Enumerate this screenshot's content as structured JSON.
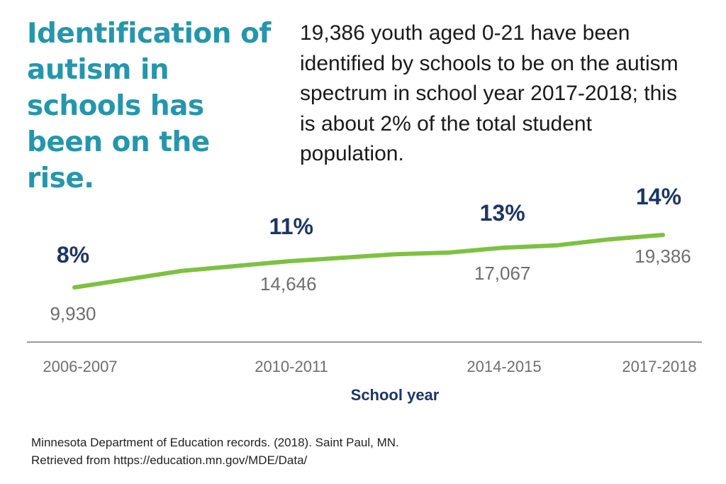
{
  "headline": "Identification of autism in schools has been on the rise.",
  "summary": "19,386 youth aged 0-21 have been identified by schools to be on the autism spectrum in school year 2017-2018; this is about 2% of the total student population.",
  "source": {
    "line1": "Minnesota Department of Education records. (2018). Saint Paul, MN.",
    "line2": "Retrieved from https://education.mn.gov/MDE/Data/"
  },
  "colors": {
    "headline": "#2596ab",
    "line": "#7dc142",
    "percent_label": "#1c3664",
    "count_label": "#6e6e6e",
    "axis": "#9b9b9b",
    "axis_title": "#1c3664",
    "tick_label": "#6e6e6e"
  },
  "chart_data": {
    "type": "line",
    "xlabel": "School year",
    "ylabel": "",
    "grid": false,
    "tick_labels": [
      "2006-2007",
      "2010-2011",
      "2014-2015",
      "2017-2018"
    ],
    "series": [
      {
        "values": [
          {
            "x": 2006.5,
            "y": 9930
          },
          {
            "x": 2008.5,
            "y": 12900
          },
          {
            "x": 2010.5,
            "y": 14646
          },
          {
            "x": 2012.5,
            "y": 15900
          },
          {
            "x": 2013.5,
            "y": 16200
          },
          {
            "x": 2014.5,
            "y": 17067
          },
          {
            "x": 2015.5,
            "y": 17500
          },
          {
            "x": 2016.5,
            "y": 18600
          },
          {
            "x": 2017.5,
            "y": 19386
          }
        ]
      }
    ],
    "annotations": [
      {
        "x": 2006.5,
        "percent": "8%",
        "count": "9,930"
      },
      {
        "x": 2010.5,
        "percent": "11%",
        "count": "14,646"
      },
      {
        "x": 2014.5,
        "percent": "13%",
        "count": "17,067"
      },
      {
        "x": 2017.5,
        "percent": "14%",
        "count": "19,386"
      }
    ]
  }
}
